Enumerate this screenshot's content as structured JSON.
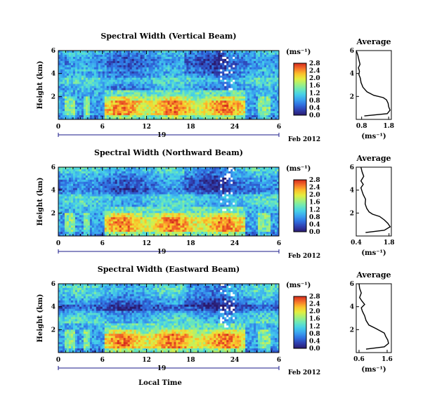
{
  "colorscale": [
    "#2a1b6e",
    "#2f3fb0",
    "#2f6fe0",
    "#3aa3f0",
    "#45d0e8",
    "#6ce8b8",
    "#a4f07a",
    "#e4ee3e",
    "#fcbf2a",
    "#f5702a",
    "#d42a1c"
  ],
  "chart_data": [
    {
      "type": "heatmap",
      "title": "Spectral Width (Vertical Beam)",
      "ylabel": "Height (km)",
      "ylim": [
        0,
        6
      ],
      "y_ticks": [
        "6",
        "4",
        "2"
      ],
      "x_ticks": [
        "0",
        "6",
        "12",
        "18",
        "24",
        "6"
      ],
      "xlim": [
        0,
        30
      ],
      "date_label": "19",
      "month_label": "Feb 2012",
      "colorbar": {
        "unit": "(ms⁻¹)",
        "range": [
          0,
          2.8
        ],
        "ticks": [
          "2.8",
          "2.4",
          "2.0",
          "1.6",
          "1.2",
          "0.8",
          "0.4",
          "0.0"
        ]
      },
      "average": {
        "title": "Average",
        "xlabel": "(ms⁻¹)",
        "x_ticks": [
          "0.8",
          "1.8"
        ],
        "xlim": [
          0.6,
          1.9
        ],
        "ylim": [
          0,
          6
        ],
        "y_ticks": [
          "6",
          "4",
          "2"
        ],
        "height": [
          0.3,
          0.5,
          0.8,
          1.1,
          1.4,
          1.7,
          1.9,
          2.1,
          2.4,
          2.8,
          3.2,
          3.6,
          3.9,
          4.2,
          4.5,
          4.8,
          5.2,
          5.6,
          6.0
        ],
        "value": [
          0.9,
          1.75,
          1.85,
          1.8,
          1.78,
          1.72,
          1.6,
          1.25,
          1.0,
          0.85,
          0.78,
          0.75,
          0.7,
          0.72,
          0.68,
          0.74,
          0.7,
          0.66,
          0.6
        ]
      }
    },
    {
      "type": "heatmap",
      "title": "Spectral Width (Northward Beam)",
      "ylabel": "Height (km)",
      "ylim": [
        0,
        6
      ],
      "y_ticks": [
        "6",
        "4",
        "2"
      ],
      "x_ticks": [
        "0",
        "6",
        "12",
        "18",
        "24",
        "6"
      ],
      "xlim": [
        0,
        30
      ],
      "date_label": "19",
      "month_label": "Feb 2012",
      "colorbar": {
        "unit": "(ms⁻¹)",
        "range": [
          0,
          2.8
        ],
        "ticks": [
          "2.8",
          "2.4",
          "2.0",
          "1.6",
          "1.2",
          "0.8",
          "0.4",
          "0.0"
        ]
      },
      "average": {
        "title": "Average",
        "xlabel": "(ms⁻¹)",
        "x_ticks": [
          "0.4",
          "1.8"
        ],
        "xlim": [
          0.4,
          1.9
        ],
        "ylim": [
          0,
          6
        ],
        "y_ticks": [
          "6",
          "4",
          "2"
        ],
        "height": [
          0.3,
          0.5,
          0.8,
          1.1,
          1.4,
          1.7,
          1.9,
          2.1,
          2.4,
          2.8,
          3.2,
          3.6,
          3.9,
          4.2,
          4.5,
          4.8,
          5.2,
          5.6,
          6.0
        ],
        "value": [
          0.8,
          1.6,
          1.85,
          1.75,
          1.6,
          1.4,
          1.1,
          0.95,
          0.85,
          0.78,
          0.8,
          0.7,
          0.65,
          0.6,
          0.7,
          0.6,
          0.72,
          0.65,
          0.6
        ]
      }
    },
    {
      "type": "heatmap",
      "title": "Spectral Width (Eastward Beam)",
      "ylabel": "Height (km)",
      "ylim": [
        0,
        6
      ],
      "y_ticks": [
        "6",
        "4",
        "2"
      ],
      "x_ticks": [
        "0",
        "6",
        "12",
        "18",
        "24",
        "6"
      ],
      "xlim": [
        0,
        30
      ],
      "date_label": "19",
      "month_label": "Feb 2012",
      "xlabel": "Local Time",
      "colorbar": {
        "unit": "(ms⁻¹)",
        "range": [
          0,
          2.8
        ],
        "ticks": [
          "2.8",
          "2.4",
          "2.0",
          "1.6",
          "1.2",
          "0.8",
          "0.4",
          "0.0"
        ]
      },
      "average": {
        "title": "Average",
        "xlabel": "(ms⁻¹)",
        "x_ticks": [
          "0.6",
          "1.6"
        ],
        "xlim": [
          0.5,
          1.75
        ],
        "ylim": [
          0,
          6
        ],
        "y_ticks": [
          "6",
          "4",
          "2"
        ],
        "height": [
          0.3,
          0.5,
          0.8,
          1.1,
          1.4,
          1.7,
          1.9,
          2.1,
          2.4,
          2.8,
          3.2,
          3.6,
          3.9,
          4.2,
          4.5,
          4.8,
          5.2,
          5.6,
          6.0
        ],
        "value": [
          0.85,
          1.5,
          1.65,
          1.62,
          1.55,
          1.5,
          1.35,
          1.2,
          0.95,
          0.85,
          0.8,
          0.72,
          0.68,
          0.8,
          0.7,
          0.62,
          0.68,
          0.62,
          0.6
        ]
      }
    }
  ]
}
